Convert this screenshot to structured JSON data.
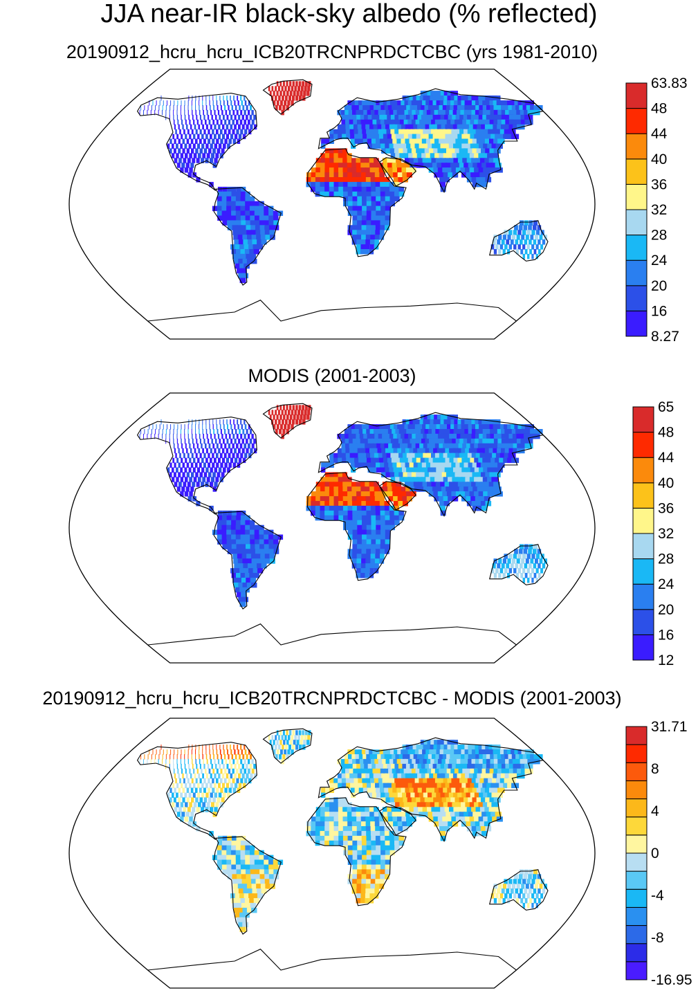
{
  "figure": {
    "title": "JJA near-IR black-sky albedo (% reflected)"
  },
  "colors": {
    "abs_palette": [
      "#3a1cff",
      "#2c50e8",
      "#2a7ff0",
      "#1ab8f5",
      "#a8d8f0",
      "#fff68a",
      "#fcc21a",
      "#fb8a0c",
      "#fe2a00",
      "#d92b2b"
    ],
    "diff_palette": [
      "#4a1cff",
      "#2c2ce8",
      "#2c6ae8",
      "#2a90f0",
      "#1ab8f5",
      "#5ac8f5",
      "#b8def2",
      "#fff6a0",
      "#fdd83a",
      "#fcb81a",
      "#fb8a0c",
      "#fc5a0c",
      "#fe2a00",
      "#d92b2b"
    ]
  },
  "chart_data": [
    {
      "type": "heatmap",
      "title": "20190912_hcru_hcru_ICB20TRCNPRDCTCBC (yrs 1981-2010)",
      "projection": "Robinson",
      "field": "near-IR black-sky albedo (%)",
      "colorbar": {
        "labels": [
          "8.27",
          "16",
          "20",
          "24",
          "28",
          "32",
          "36",
          "40",
          "44",
          "48",
          "63.83"
        ],
        "min": 8.27,
        "max": 63.83
      },
      "regional_values": [
        {
          "region": "Sahara",
          "value": 46
        },
        {
          "region": "Arabian Peninsula",
          "value": 40
        },
        {
          "region": "Greenland",
          "value": 55
        },
        {
          "region": "Central Asia",
          "value": 30
        },
        {
          "region": "Amazon",
          "value": 18
        },
        {
          "region": "Boreal North America",
          "value": 14
        },
        {
          "region": "Australia",
          "value": 24
        }
      ]
    },
    {
      "type": "heatmap",
      "title": "MODIS (2001-2003)",
      "projection": "Robinson",
      "field": "near-IR black-sky albedo (%)",
      "colorbar": {
        "labels": [
          "12",
          "16",
          "20",
          "24",
          "28",
          "32",
          "36",
          "40",
          "44",
          "48",
          "65"
        ],
        "min": 12,
        "max": 65
      },
      "regional_values": [
        {
          "region": "Sahara",
          "value": 45
        },
        {
          "region": "Arabian Peninsula",
          "value": 44
        },
        {
          "region": "Greenland",
          "value": 56
        },
        {
          "region": "Central Asia",
          "value": 28
        },
        {
          "region": "Amazon",
          "value": 18
        },
        {
          "region": "Boreal North America",
          "value": 14
        },
        {
          "region": "Australia",
          "value": 26
        }
      ]
    },
    {
      "type": "heatmap",
      "title": "20190912_hcru_hcru_ICB20TRCNPRDCTCBC - MODIS (2001-2003)",
      "projection": "Robinson",
      "field": "albedo difference (%)",
      "colorbar": {
        "labels": [
          "-16.95",
          "-8",
          "-4",
          "0",
          "4",
          "8",
          "31.71"
        ],
        "min": -16.95,
        "max": 31.71
      },
      "regional_values": [
        {
          "region": "Sahara",
          "value": -3
        },
        {
          "region": "Southern Africa",
          "value": 3
        },
        {
          "region": "South America",
          "value": 1
        },
        {
          "region": "Central Asia",
          "value": 6
        },
        {
          "region": "Canadian Arctic",
          "value": 9
        },
        {
          "region": "Siberia",
          "value": -5
        },
        {
          "region": "Australia",
          "value": -2
        }
      ]
    }
  ]
}
